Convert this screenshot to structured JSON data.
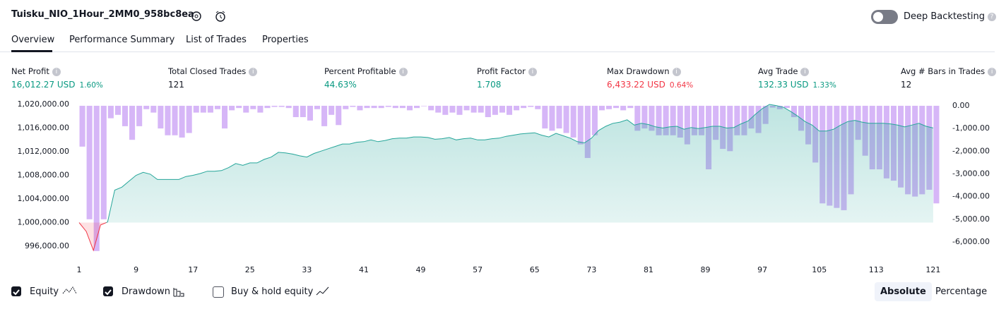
{
  "header": {
    "title": "Tuisku_NIO_1Hour_2MM0_958bc8ea",
    "toggle_label": "Deep Backtesting"
  },
  "tabs": [
    "Overview",
    "Performance Summary",
    "List of Trades",
    "Properties"
  ],
  "metrics": [
    {
      "label": "Net Profit",
      "value": "16,012.27 USD",
      "change": "1.60%"
    },
    {
      "label": "Total Closed Trades",
      "value": "121"
    },
    {
      "label": "Percent Profitable",
      "value": "44.63%"
    },
    {
      "label": "Profit Factor",
      "value": "1.708"
    },
    {
      "label": "Max Drawdown",
      "value": "6,433.22 USD",
      "change": "0.64%"
    },
    {
      "label": "Avg Trade",
      "value": "132.33 USD",
      "change": "1.33%"
    },
    {
      "label": "Avg # Bars in Trades",
      "value": "12"
    }
  ],
  "chart_data": {
    "type": "equity-drawdown",
    "x": [
      1,
      2,
      3,
      4,
      5,
      6,
      7,
      8,
      9,
      10,
      11,
      12,
      13,
      14,
      15,
      16,
      17,
      18,
      19,
      20,
      21,
      22,
      23,
      24,
      25,
      26,
      27,
      28,
      29,
      30,
      31,
      32,
      33,
      34,
      35,
      36,
      37,
      38,
      39,
      40,
      41,
      42,
      43,
      44,
      45,
      46,
      47,
      48,
      49,
      50,
      51,
      52,
      53,
      54,
      55,
      56,
      57,
      58,
      59,
      60,
      61,
      62,
      63,
      64,
      65,
      66,
      67,
      68,
      69,
      70,
      71,
      72,
      73,
      74,
      75,
      76,
      77,
      78,
      79,
      80,
      81,
      82,
      83,
      84,
      85,
      86,
      87,
      88,
      89,
      90,
      91,
      92,
      93,
      94,
      95,
      96,
      97,
      98,
      99,
      100,
      101,
      102,
      103,
      104,
      105,
      106,
      107,
      108,
      109,
      110,
      111,
      112,
      113,
      114,
      115,
      116,
      117,
      118,
      119,
      120,
      121
    ],
    "xlim": [
      0.6,
      122.4
    ],
    "xticks": [
      1,
      9,
      17,
      25,
      33,
      41,
      49,
      57,
      65,
      73,
      81,
      89,
      97,
      105,
      113,
      121
    ],
    "ylim": [
      993500,
      1020000
    ],
    "yticks": [
      {
        "value": 996000,
        "label": "996,000.00"
      },
      {
        "value": 1000000,
        "label": "1,000,000.00"
      },
      {
        "value": 1004000,
        "label": "1,004,000.00"
      },
      {
        "value": 1008000,
        "label": "1,008,000.00"
      },
      {
        "value": 1012000,
        "label": "1,012,000.00"
      },
      {
        "value": 1016000,
        "label": "1,016,000.00"
      },
      {
        "value": 1020000,
        "label": "1,020,000.00"
      }
    ],
    "y2lim": [
      -6840,
      60
    ],
    "y2ticks": [
      {
        "value": 0,
        "label": "0.00"
      },
      {
        "value": -1000,
        "label": "-1,000.00"
      },
      {
        "value": -2000,
        "label": "-2,000.00"
      },
      {
        "value": -3000,
        "label": "-3,000.00"
      },
      {
        "value": -4000,
        "label": "-4,000.00"
      },
      {
        "value": -5000,
        "label": "-5,000.00"
      },
      {
        "value": -6000,
        "label": "-6,000.00"
      }
    ],
    "baseline": 1000000,
    "series": [
      {
        "name": "Equity",
        "color": "#26a69a",
        "negative_color": "#f23645",
        "values": [
          1000000,
          998500,
          995300,
          999600,
          1000100,
          1005500,
          1006000,
          1007000,
          1008000,
          1008500,
          1008200,
          1007300,
          1007300,
          1007300,
          1007300,
          1007800,
          1008000,
          1008300,
          1008700,
          1008700,
          1008800,
          1009300,
          1010000,
          1009700,
          1010100,
          1010100,
          1010700,
          1011100,
          1011900,
          1011800,
          1011600,
          1011300,
          1011100,
          1011700,
          1012100,
          1012500,
          1012900,
          1013300,
          1013300,
          1013600,
          1013700,
          1014000,
          1013700,
          1013900,
          1014200,
          1014300,
          1014300,
          1014500,
          1014500,
          1014400,
          1014100,
          1014200,
          1014400,
          1014000,
          1014200,
          1014300,
          1014000,
          1014000,
          1014200,
          1014300,
          1014600,
          1014800,
          1015000,
          1015100,
          1015200,
          1014800,
          1014500,
          1015100,
          1014700,
          1014300,
          1013700,
          1013500,
          1014300,
          1015600,
          1016300,
          1016800,
          1017000,
          1017400,
          1016500,
          1016800,
          1016600,
          1016200,
          1016000,
          1016200,
          1016300,
          1015800,
          1016100,
          1015900,
          1016100,
          1016300,
          1016300,
          1016000,
          1016100,
          1016700,
          1017200,
          1018300,
          1019300,
          1020000,
          1019800,
          1019500,
          1018800,
          1018000,
          1017100,
          1016500,
          1015500,
          1015500,
          1015800,
          1016500,
          1017100,
          1017300,
          1017000,
          1016800,
          1016800,
          1016800,
          1016700,
          1016500,
          1016200,
          1016500,
          1016800,
          1016300,
          1016012.27
        ]
      },
      {
        "name": "Drawdown",
        "color": "#d6b6f7",
        "axis": "y2",
        "values": [
          -1800,
          -5000,
          -6400,
          -5000,
          -550,
          -400,
          -900,
          -1500,
          -900,
          -150,
          -300,
          -1000,
          -1300,
          -1300,
          -1400,
          -1200,
          -300,
          -300,
          -300,
          -150,
          -1000,
          -200,
          -100,
          -300,
          -150,
          -300,
          -100,
          -50,
          -50,
          -100,
          -500,
          -500,
          -650,
          -150,
          -900,
          -400,
          -850,
          -150,
          -50,
          -200,
          -100,
          -100,
          -100,
          -50,
          -100,
          -100,
          -200,
          -100,
          -20,
          -200,
          -300,
          -400,
          -300,
          -400,
          -200,
          -300,
          -300,
          -500,
          -400,
          -300,
          -400,
          -200,
          -100,
          -50,
          -150,
          -1000,
          -1100,
          -1000,
          -1200,
          -1400,
          -1700,
          -2300,
          -1300,
          -200,
          -150,
          -100,
          -200,
          -100,
          -1100,
          -1000,
          -1100,
          -1300,
          -1300,
          -1300,
          -1400,
          -1700,
          -1300,
          -1300,
          -2800,
          -1500,
          -1900,
          -2000,
          -1300,
          -1300,
          -1000,
          -1200,
          -800,
          -80,
          -150,
          -100,
          -500,
          -1100,
          -1700,
          -2500,
          -4300,
          -4400,
          -4500,
          -4600,
          -3900,
          -1500,
          -2200,
          -2800,
          -2800,
          -3200,
          -3300,
          -3600,
          -3900,
          -4000,
          -3900,
          -3700,
          -4300
        ]
      }
    ]
  },
  "footer": {
    "buy_hold": "Buy & hold equity",
    "modes": [
      "Absolute",
      "Percentage"
    ]
  }
}
